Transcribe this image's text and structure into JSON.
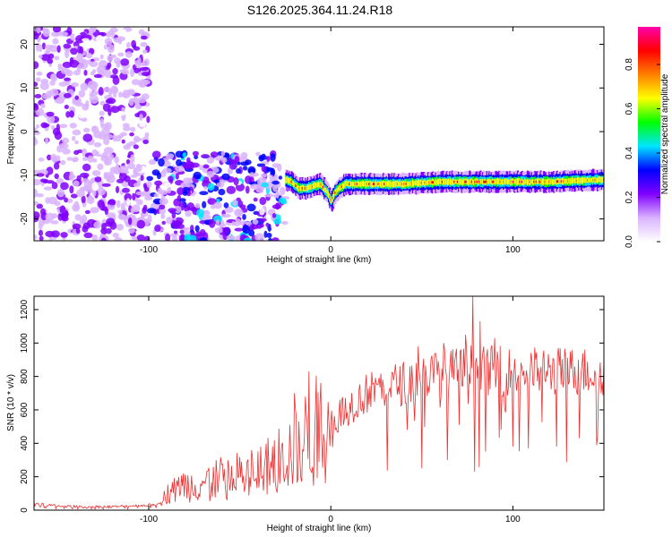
{
  "title": "S126.2025.364.11.24.R18",
  "chart_data": [
    {
      "type": "heatmap",
      "title": "S126.2025.364.11.24.R18",
      "xlabel": "Height of straight line (km)",
      "ylabel": "Frequency (Hz)",
      "xlim": [
        -163,
        150
      ],
      "ylim": [
        -25,
        24
      ],
      "xticks": [
        -100,
        0,
        100
      ],
      "xtick_labels": [
        "-100",
        "0",
        "100"
      ],
      "yticks": [
        20,
        10,
        0,
        -10,
        -20
      ],
      "ytick_labels": [
        "20",
        "10",
        "0",
        "-10",
        "-20"
      ],
      "colorbar": {
        "label": "Normalized spectral amplitude",
        "range": [
          0.0,
          0.97
        ],
        "ticks": [
          0.0,
          0.2,
          0.4,
          0.6,
          0.8
        ],
        "tick_labels": [
          "0.0",
          "0.2",
          "0.4",
          "0.6",
          "0.8"
        ],
        "colors": [
          "#ffffff",
          "#d9b3ff",
          "#8000ff",
          "#0000ff",
          "#00e5ff",
          "#00ff00",
          "#ffff00",
          "#ff8000",
          "#ff0000",
          "#ff00aa"
        ]
      },
      "ridge": {
        "x": [
          -25,
          -22,
          -18,
          -14,
          -10,
          -6,
          -4,
          -2,
          0,
          2,
          4,
          6,
          8,
          12,
          20,
          40,
          60,
          80,
          100,
          120,
          150
        ],
        "y": [
          -11,
          -11.5,
          -13,
          -13,
          -12.5,
          -12,
          -13,
          -14,
          -16,
          -14,
          -13,
          -12.5,
          -12,
          -12,
          -12,
          -12,
          -11.5,
          -11.5,
          -11.5,
          -11.5,
          -11
        ]
      },
      "noise_regions": [
        {
          "x": [
            -163,
            -100
          ],
          "y": [
            -25,
            24
          ]
        },
        {
          "x": [
            -100,
            -25
          ],
          "y": [
            -25,
            -5
          ]
        }
      ]
    },
    {
      "type": "line",
      "xlabel": "Height of straight line (km)",
      "ylabel": "SNR (10 * v/v)",
      "xlim": [
        -163,
        150
      ],
      "ylim": [
        0,
        1280
      ],
      "xticks": [
        -100,
        0,
        100
      ],
      "xtick_labels": [
        "-100",
        "0",
        "100"
      ],
      "yticks": [
        0,
        200,
        400,
        600,
        800,
        1000,
        1200
      ],
      "ytick_labels": [
        "0",
        "200",
        "400",
        "600",
        "800",
        "1000",
        "1200"
      ],
      "color": "#ef3030",
      "series": [
        {
          "name": "SNR",
          "x": [
            -163,
            -150,
            -140,
            -130,
            -120,
            -110,
            -100,
            -95,
            -92,
            -90,
            -85,
            -80,
            -75,
            -70,
            -65,
            -60,
            -55,
            -50,
            -45,
            -40,
            -35,
            -30,
            -25,
            -20,
            -15,
            -10,
            -5,
            0,
            5,
            10,
            15,
            20,
            25,
            30,
            35,
            40,
            45,
            50,
            55,
            60,
            65,
            70,
            75,
            80,
            85,
            90,
            95,
            100,
            110,
            120,
            130,
            140,
            150
          ],
          "y": [
            40,
            25,
            20,
            20,
            20,
            25,
            30,
            40,
            60,
            110,
            150,
            150,
            150,
            170,
            180,
            190,
            200,
            210,
            220,
            240,
            260,
            300,
            330,
            360,
            420,
            460,
            500,
            540,
            580,
            620,
            660,
            700,
            720,
            740,
            750,
            760,
            780,
            800,
            810,
            820,
            820,
            830,
            840,
            850,
            830,
            840,
            830,
            830,
            830,
            830,
            830,
            830,
            830
          ]
        }
      ],
      "spikes": [
        {
          "x": -20,
          "y": 700
        },
        {
          "x": -12,
          "y": 830
        },
        {
          "x": 25,
          "y": 760
        },
        {
          "x": 48,
          "y": 980
        },
        {
          "x": 50,
          "y": 250
        },
        {
          "x": 62,
          "y": 1000
        },
        {
          "x": 64,
          "y": 300
        },
        {
          "x": 74,
          "y": 1050
        },
        {
          "x": 78,
          "y": 1280
        },
        {
          "x": 79,
          "y": 230
        },
        {
          "x": 82,
          "y": 1130
        },
        {
          "x": 85,
          "y": 350
        },
        {
          "x": 90,
          "y": 1030
        },
        {
          "x": 100,
          "y": 380
        },
        {
          "x": 124,
          "y": 380
        },
        {
          "x": 146,
          "y": 390
        }
      ]
    }
  ]
}
